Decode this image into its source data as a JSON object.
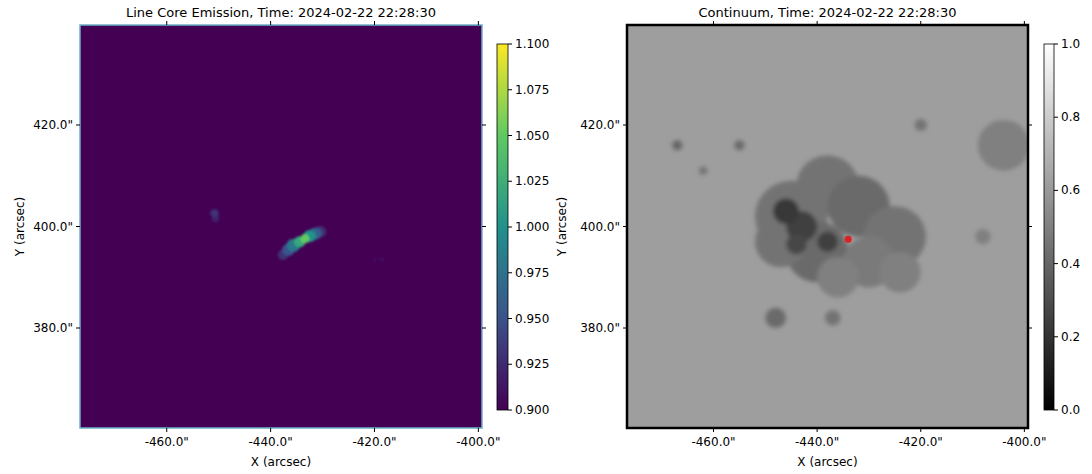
{
  "chart_data": [
    {
      "type": "heatmap",
      "title": "Line Core Emission, Time: 2024-02-22 22:28:30",
      "x_label": "X (arcsec)",
      "y_label": "Y (arcsec)",
      "color": "viridis",
      "xlim": [
        -476.7,
        -399.3
      ],
      "ylim": [
        360.3,
        439.7
      ],
      "xticks": [
        {
          "value": -460,
          "label": "-460.0\""
        },
        {
          "value": -440,
          "label": "-440.0\""
        },
        {
          "value": -420,
          "label": "-420.0\""
        },
        {
          "value": -400,
          "label": "-400.0\""
        }
      ],
      "yticks": [
        {
          "value": 380,
          "label": "380.0\""
        },
        {
          "value": 400,
          "label": "400.0\""
        },
        {
          "value": 420,
          "label": "420.0\""
        }
      ],
      "background": 0.9,
      "cells": [
        {
          "x": -420,
          "y": 393.5,
          "r": 0.4,
          "value": 0.91
        },
        {
          "x": -418.5,
          "y": 393.5,
          "r": 0.4,
          "value": 0.91
        },
        {
          "x": -450.6,
          "y": 401.6,
          "r": 0.7,
          "value": 0.92
        },
        {
          "x": -450.8,
          "y": 402.6,
          "r": 0.8,
          "value": 0.93
        },
        {
          "x": -437.6,
          "y": 394.4,
          "r": 1.0,
          "value": 0.93
        },
        {
          "x": -430.4,
          "y": 399.0,
          "r": 1.1,
          "value": 0.93
        },
        {
          "x": -436.6,
          "y": 395.4,
          "r": 1.2,
          "value": 0.95
        },
        {
          "x": -431.4,
          "y": 398.6,
          "r": 1.2,
          "value": 0.96
        },
        {
          "x": -435.6,
          "y": 396.3,
          "r": 1.3,
          "value": 0.98
        },
        {
          "x": -432.5,
          "y": 398.1,
          "r": 1.2,
          "value": 1.0
        },
        {
          "x": -434.4,
          "y": 397.0,
          "r": 1.1,
          "value": 1.02
        },
        {
          "x": -433.4,
          "y": 397.6,
          "r": 0.9,
          "value": 1.05
        }
      ],
      "colorbar": {
        "range": [
          0.9,
          1.1
        ],
        "ticks": [
          {
            "value": 0.9,
            "label": "0.900"
          },
          {
            "value": 0.925,
            "label": "0.925"
          },
          {
            "value": 0.95,
            "label": "0.950"
          },
          {
            "value": 0.975,
            "label": "0.975"
          },
          {
            "value": 1.0,
            "label": "1.000"
          },
          {
            "value": 1.025,
            "label": "1.025"
          },
          {
            "value": 1.05,
            "label": "1.050"
          },
          {
            "value": 1.075,
            "label": "1.075"
          },
          {
            "value": 1.1,
            "label": "1.100"
          }
        ]
      }
    },
    {
      "type": "heatmap",
      "title": "Continuum, Time: 2024-02-22 22:28:30",
      "x_label": "X (arcsec)",
      "y_label": "Y (arcsec)",
      "color": "gray",
      "xlim": [
        -476.7,
        -399.3
      ],
      "ylim": [
        360.3,
        439.7
      ],
      "xticks": [
        {
          "value": -460,
          "label": "-460.0\""
        },
        {
          "value": -440,
          "label": "-440.0\""
        },
        {
          "value": -420,
          "label": "-420.0\""
        },
        {
          "value": -400,
          "label": "-400.0\""
        }
      ],
      "yticks": [
        {
          "value": 380,
          "label": "380.0\""
        },
        {
          "value": 400,
          "label": "400.0\""
        },
        {
          "value": 420,
          "label": "420.0\""
        }
      ],
      "background": 0.62,
      "cells": [
        {
          "x": -404,
          "y": 416,
          "r": 5,
          "value": 0.5
        },
        {
          "x": -445,
          "y": 402,
          "r": 7,
          "value": 0.45
        },
        {
          "x": -438,
          "y": 408,
          "r": 6,
          "value": 0.45
        },
        {
          "x": -432,
          "y": 404,
          "r": 6,
          "value": 0.42
        },
        {
          "x": -425,
          "y": 398,
          "r": 6,
          "value": 0.45
        },
        {
          "x": -440,
          "y": 395,
          "r": 6,
          "value": 0.42
        },
        {
          "x": -447,
          "y": 397,
          "r": 5,
          "value": 0.45
        },
        {
          "x": -430,
          "y": 393,
          "r": 5,
          "value": 0.48
        },
        {
          "x": -436,
          "y": 390,
          "r": 4,
          "value": 0.5
        },
        {
          "x": -424,
          "y": 391,
          "r": 4,
          "value": 0.5
        },
        {
          "x": -443,
          "y": 400,
          "r": 3,
          "value": 0.25
        },
        {
          "x": -446,
          "y": 403,
          "r": 2.5,
          "value": 0.22
        },
        {
          "x": -438,
          "y": 397,
          "r": 2,
          "value": 0.25
        },
        {
          "x": -444,
          "y": 396.5,
          "r": 2,
          "value": 0.28
        },
        {
          "x": -467,
          "y": 416,
          "r": 1,
          "value": 0.4
        },
        {
          "x": -462,
          "y": 411,
          "r": 0.8,
          "value": 0.45
        },
        {
          "x": -455,
          "y": 416,
          "r": 1,
          "value": 0.42
        },
        {
          "x": -420,
          "y": 420,
          "r": 1.2,
          "value": 0.45
        },
        {
          "x": -448,
          "y": 382,
          "r": 2,
          "value": 0.42
        },
        {
          "x": -437,
          "y": 382,
          "r": 1.5,
          "value": 0.45
        },
        {
          "x": -408,
          "y": 398,
          "r": 1.5,
          "value": 0.5
        }
      ],
      "points": [
        {
          "x": -434,
          "y": 397.5,
          "color": "#e02020"
        }
      ],
      "colorbar": {
        "range": [
          0,
          1
        ],
        "ticks": [
          {
            "value": 0,
            "label": "0.0"
          },
          {
            "value": 0.2,
            "label": "0.2"
          },
          {
            "value": 0.4,
            "label": "0.4"
          },
          {
            "value": 0.6,
            "label": "0.6"
          },
          {
            "value": 0.8,
            "label": "0.8"
          },
          {
            "value": 1,
            "label": "1.0"
          }
        ]
      }
    }
  ]
}
